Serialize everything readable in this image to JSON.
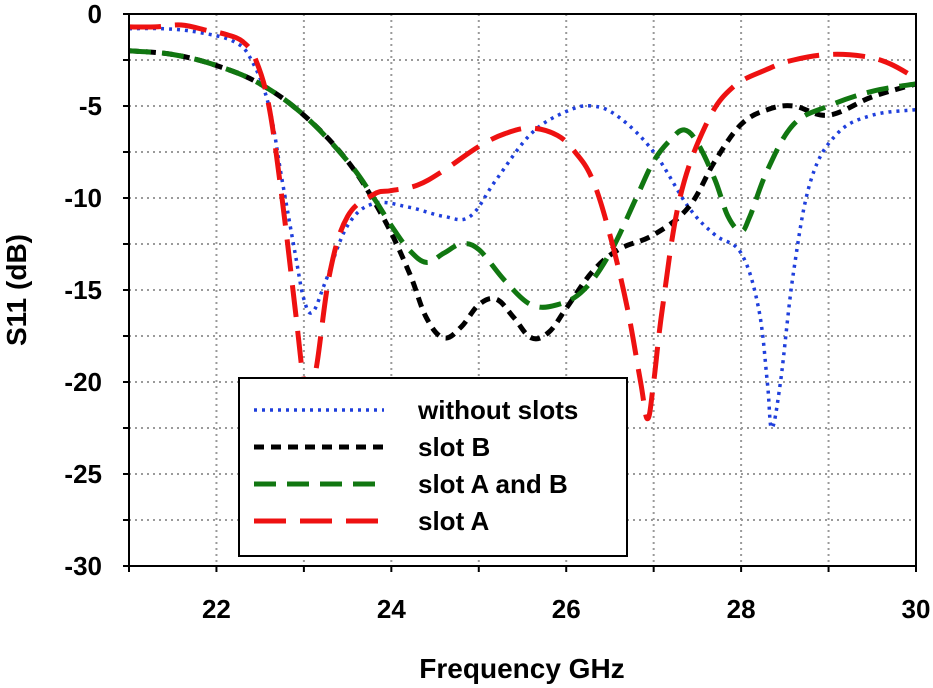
{
  "chart_data": {
    "type": "line",
    "title": "",
    "xlabel": "Frequency GHz",
    "ylabel": "S11 (dB)",
    "xlim": [
      21,
      30
    ],
    "ylim": [
      -30,
      0
    ],
    "xticks": [
      22,
      24,
      26,
      28,
      30
    ],
    "yticks": [
      0,
      -5,
      -10,
      -15,
      -20,
      -25,
      -30
    ],
    "grid": true,
    "legend_position": "bottom-center",
    "series": [
      {
        "name": "without slots",
        "color": "#1f3fdc",
        "dash": "dotted",
        "x": [
          21.0,
          21.4,
          21.8,
          22.2,
          22.4,
          22.6,
          22.75,
          22.9,
          23.0,
          23.1,
          23.25,
          23.5,
          23.8,
          24.2,
          24.6,
          24.9,
          25.2,
          25.6,
          26.0,
          26.3,
          26.6,
          27.0,
          27.4,
          27.7,
          28.0,
          28.2,
          28.3,
          28.35,
          28.45,
          28.6,
          28.8,
          29.1,
          29.5,
          30.0
        ],
        "values": [
          -0.8,
          -0.8,
          -1.0,
          -1.5,
          -2.5,
          -5.0,
          -9.0,
          -13.0,
          -15.5,
          -16.2,
          -14.5,
          -11.5,
          -10.3,
          -10.5,
          -11.0,
          -11.0,
          -9.0,
          -6.5,
          -5.3,
          -5.0,
          -5.6,
          -7.5,
          -10.5,
          -12.0,
          -13.0,
          -16.0,
          -20.0,
          -22.5,
          -20.0,
          -14.0,
          -9.0,
          -6.5,
          -5.5,
          -5.2
        ]
      },
      {
        "name": "slot B",
        "color": "#000000",
        "dash": "short-dash",
        "x": [
          21.0,
          21.5,
          22.0,
          22.5,
          23.0,
          23.5,
          23.9,
          24.2,
          24.4,
          24.6,
          24.8,
          25.0,
          25.2,
          25.4,
          25.6,
          25.8,
          26.0,
          26.3,
          26.6,
          27.0,
          27.4,
          27.7,
          28.0,
          28.3,
          28.6,
          29.0,
          29.5,
          30.0
        ],
        "values": [
          -2.0,
          -2.2,
          -2.8,
          -3.8,
          -5.5,
          -8.0,
          -11.0,
          -14.0,
          -16.5,
          -17.6,
          -17.0,
          -15.8,
          -15.5,
          -16.5,
          -17.6,
          -17.3,
          -16.0,
          -14.0,
          -12.8,
          -12.0,
          -10.5,
          -8.0,
          -6.0,
          -5.2,
          -5.0,
          -5.5,
          -4.5,
          -3.8
        ]
      },
      {
        "name": "slot A and B",
        "color": "#117711",
        "dash": "medium-dash",
        "x": [
          21.0,
          21.5,
          22.0,
          22.5,
          23.0,
          23.5,
          23.8,
          24.0,
          24.2,
          24.4,
          24.6,
          24.8,
          25.0,
          25.3,
          25.6,
          25.9,
          26.2,
          26.5,
          26.8,
          27.0,
          27.2,
          27.35,
          27.5,
          27.7,
          27.85,
          28.0,
          28.1,
          28.3,
          28.6,
          29.0,
          29.5,
          30.0
        ],
        "values": [
          -2.0,
          -2.2,
          -2.8,
          -3.8,
          -5.5,
          -8.0,
          -10.0,
          -11.5,
          -12.8,
          -13.5,
          -13.0,
          -12.5,
          -12.8,
          -14.5,
          -15.8,
          -15.8,
          -15.0,
          -13.0,
          -10.0,
          -8.0,
          -6.8,
          -6.3,
          -7.0,
          -9.0,
          -11.0,
          -11.8,
          -11.0,
          -8.5,
          -6.0,
          -5.0,
          -4.2,
          -3.8
        ]
      },
      {
        "name": "slot A",
        "color": "#ee1111",
        "dash": "long-dash",
        "x": [
          21.0,
          21.3,
          21.6,
          21.9,
          22.1,
          22.3,
          22.45,
          22.6,
          22.75,
          22.9,
          23.0,
          23.08,
          23.15,
          23.3,
          23.5,
          23.8,
          24.0,
          24.3,
          24.6,
          25.0,
          25.3,
          25.6,
          25.9,
          26.1,
          26.3,
          26.5,
          26.7,
          26.85,
          26.93,
          27.0,
          27.1,
          27.3,
          27.6,
          27.9,
          28.3,
          28.6,
          29.0,
          29.4,
          29.7,
          30.0
        ],
        "values": [
          -0.7,
          -0.7,
          -0.6,
          -0.9,
          -1.1,
          -1.5,
          -2.5,
          -5.0,
          -10.0,
          -16.0,
          -20.0,
          -20.5,
          -19.0,
          -14.0,
          -11.0,
          -9.8,
          -9.6,
          -9.3,
          -8.5,
          -7.2,
          -6.5,
          -6.2,
          -6.6,
          -7.5,
          -9.0,
          -12.0,
          -16.0,
          -20.0,
          -22.0,
          -20.0,
          -16.0,
          -10.0,
          -6.0,
          -4.0,
          -3.0,
          -2.5,
          -2.2,
          -2.3,
          -2.7,
          -3.5
        ]
      }
    ]
  }
}
